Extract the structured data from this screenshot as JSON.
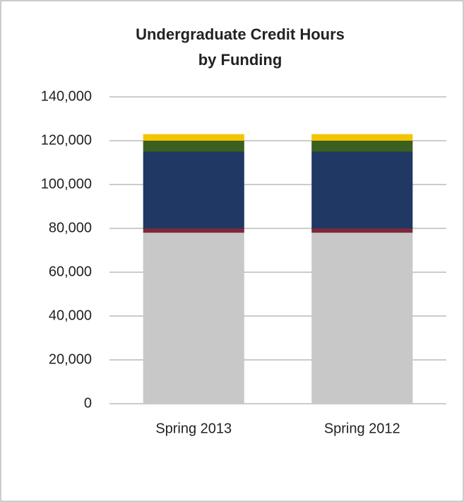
{
  "chart_data": {
    "type": "stacked-bar",
    "title": "Undergraduate Credit Hours",
    "subtitle": "by Funding",
    "categories": [
      "Spring 2013",
      "Spring 2012"
    ],
    "series": [
      {
        "color": "#c8c8c8",
        "values": [
          78000,
          78000
        ]
      },
      {
        "color": "#7b2a3a",
        "values": [
          2000,
          2000
        ]
      },
      {
        "color": "#1f3864",
        "values": [
          35000,
          35000
        ]
      },
      {
        "color": "#3a5f1e",
        "values": [
          5000,
          5000
        ]
      },
      {
        "color": "#f2c500",
        "values": [
          3000,
          3000
        ]
      }
    ],
    "ylim": [
      0,
      140000
    ],
    "yticks": [
      {
        "value": 0,
        "label": "0"
      },
      {
        "value": 20000,
        "label": "20,000"
      },
      {
        "value": 40000,
        "label": "40,000"
      },
      {
        "value": 60000,
        "label": "60,000"
      },
      {
        "value": 80000,
        "label": "80,000"
      },
      {
        "value": 100000,
        "label": "100,000"
      },
      {
        "value": 120000,
        "label": "120,000"
      },
      {
        "value": 140000,
        "label": "140,000"
      }
    ],
    "grid": true
  }
}
